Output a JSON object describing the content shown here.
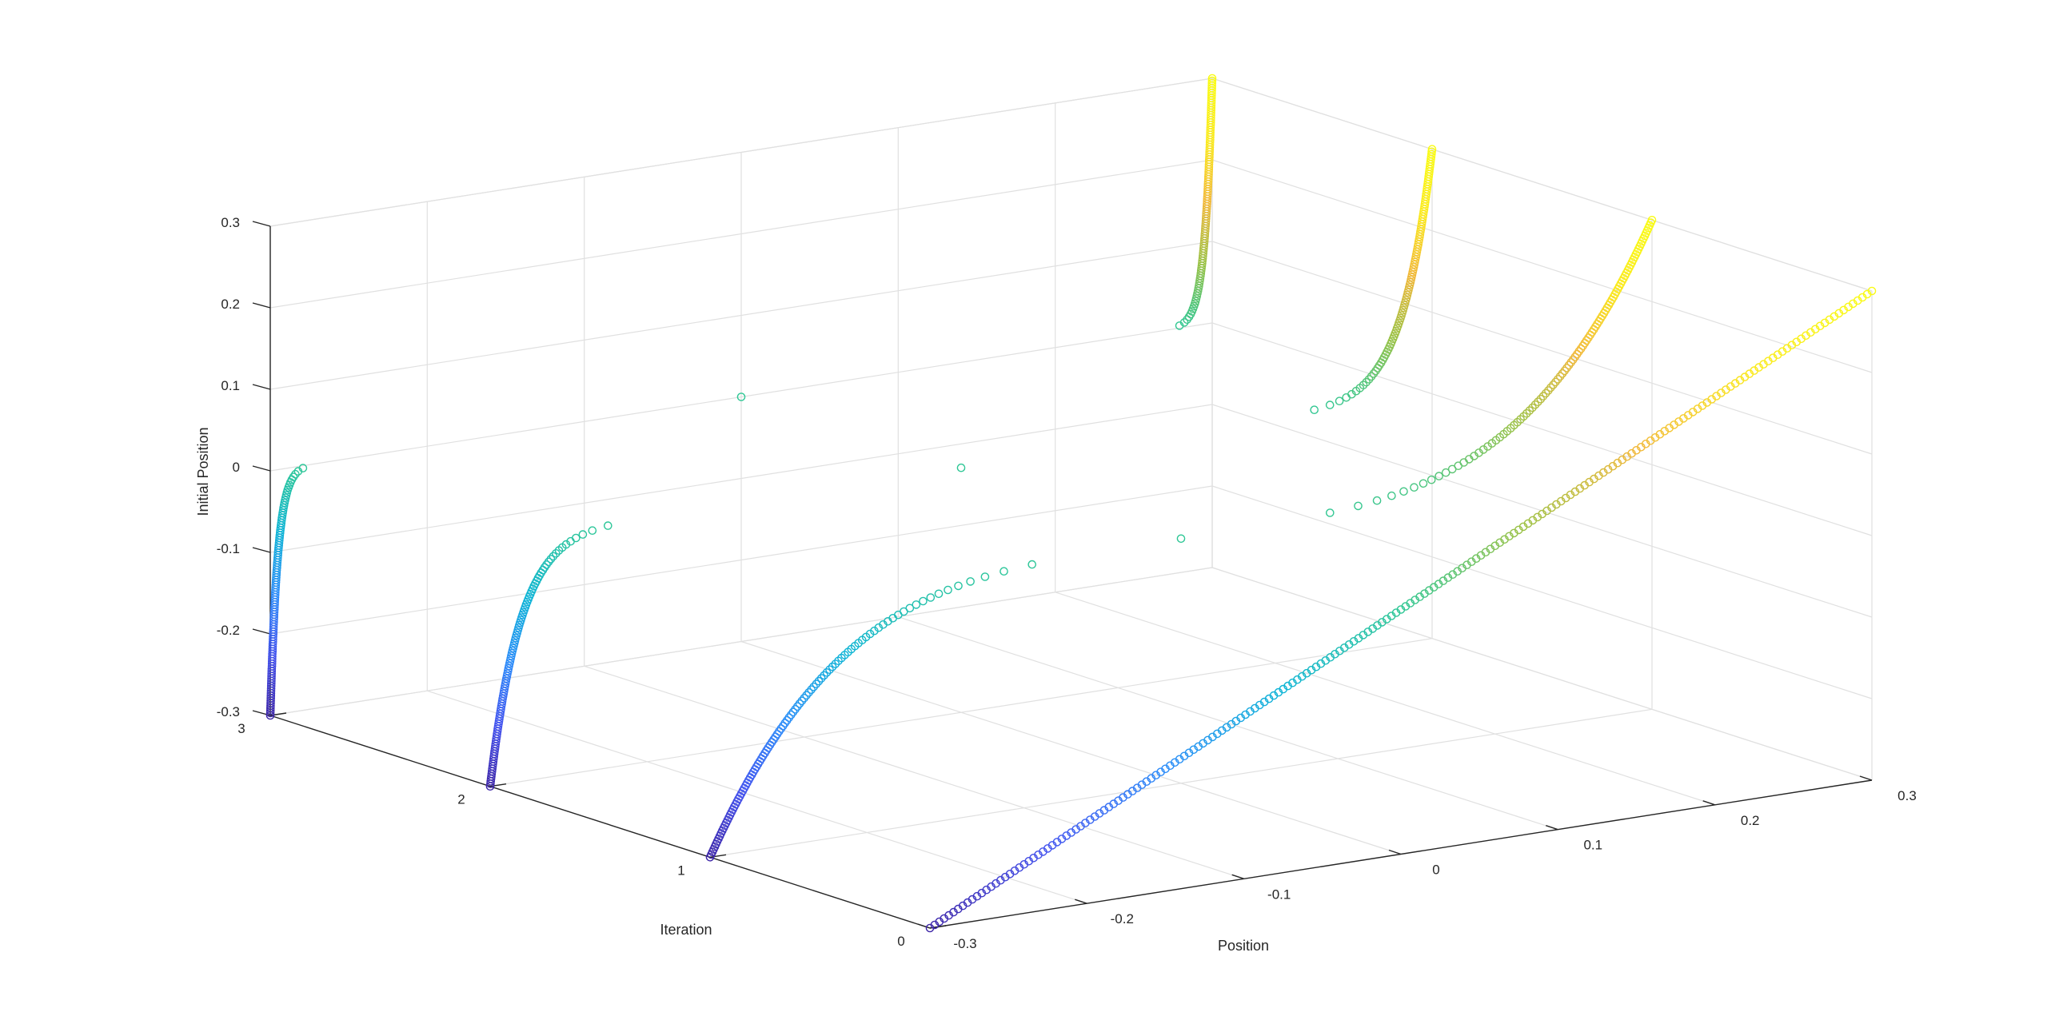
{
  "chart_data": {
    "type": "scatter",
    "projection": "3d",
    "grid": true,
    "colormap": "parula",
    "colormap_stops": [
      "#3e26a8",
      "#4454ef",
      "#2d8df9",
      "#10b5d6",
      "#2ec795",
      "#99c247",
      "#f1b83a",
      "#faea1e",
      "#f9fb15"
    ],
    "colorscale_mode": "by initial position",
    "xlabel": "Position",
    "ylabel": "Iteration",
    "zlabel": "Initial Position",
    "xlim": [
      -0.3,
      0.3
    ],
    "ylim": [
      0,
      3
    ],
    "zlim": [
      -0.3,
      0.3
    ],
    "xticks": [
      -0.3,
      -0.2,
      -0.1,
      0,
      0.1,
      0.2,
      0.3
    ],
    "yticks": [
      0,
      1,
      2,
      3
    ],
    "zticks": [
      -0.3,
      -0.2,
      -0.1,
      0,
      0.1,
      0.2,
      0.3
    ],
    "xticklabels": [
      "-0.3",
      "-0.2",
      "-0.1",
      "0",
      "0.1",
      "0.2",
      "0.3"
    ],
    "yticklabels": [
      "0",
      "1",
      "2",
      "3"
    ],
    "zticklabels": [
      "-0.3",
      "-0.2",
      "-0.1",
      "0",
      "0.1",
      "0.2",
      "0.3"
    ],
    "series": [
      {
        "iteration": 0,
        "formula": "x = x0",
        "marker": "o",
        "points_per_series": 201
      },
      {
        "iteration": 1,
        "formula": "x = 0.3 * sign(x0) * |x0 / 0.3|^(1/4)",
        "marker": "o",
        "points_per_series": 201
      },
      {
        "iteration": 2,
        "formula": "x = 0.3 * sign(x0) * |x0 / 0.3|^(1/16)",
        "marker": "o",
        "points_per_series": 201
      },
      {
        "iteration": 3,
        "formula": "x = 0.3 * sign(x0) * |x0 / 0.3|^(1/64)",
        "marker": "o",
        "points_per_series": 201
      }
    ]
  }
}
